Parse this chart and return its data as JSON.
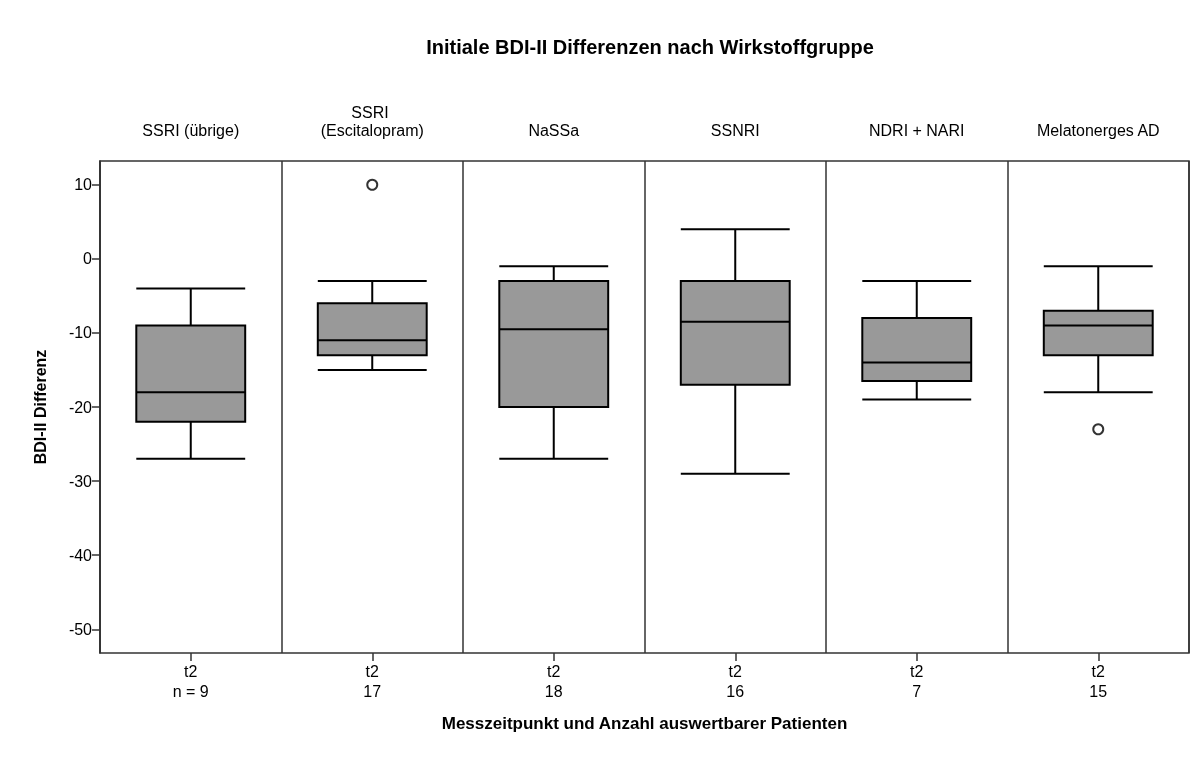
{
  "chart_data": {
    "type": "box",
    "title": "Initiale BDI-II Differenzen nach Wirkstoffgruppe",
    "ylabel": "BDI-II Differenz",
    "xlabel": "Messzeitpunkt und Anzahl auswertbarer Patienten",
    "categories": [
      "SSRI (übrige)",
      "SSRI (Escitalopram)",
      "NaSSa",
      "SSNRI",
      "NDRI + NARI",
      "Melatonerges AD"
    ],
    "annotations": [
      "t2",
      "n = 9",
      "t2",
      "17",
      "t2",
      "18",
      "t2",
      "16",
      "t2",
      "7",
      "t2",
      "15"
    ],
    "ylim": [
      -53.2,
      13.2
    ],
    "yticks": [
      -50,
      -40,
      -30,
      -20,
      -10,
      0,
      10
    ],
    "grid": false,
    "color": "#999999",
    "boxes": [
      {
        "low": -27,
        "q1": -22,
        "median": -18,
        "q3": -9,
        "high": -4
      },
      {
        "low": -15,
        "q1": -13,
        "median": -11,
        "q3": -6,
        "high": -3,
        "outliers": [
          10
        ]
      },
      {
        "low": -27,
        "q1": -20,
        "median": -9.5,
        "q3": -3,
        "high": -1
      },
      {
        "low": -29,
        "q1": -17,
        "median": -8.5,
        "q3": -3,
        "high": 4
      },
      {
        "low": -19,
        "q1": -16.5,
        "median": -14,
        "q3": -8,
        "high": -3
      },
      {
        "low": -18,
        "q1": -13,
        "median": -9,
        "q3": -7,
        "high": -1,
        "outliers": [
          -23
        ]
      }
    ]
  }
}
